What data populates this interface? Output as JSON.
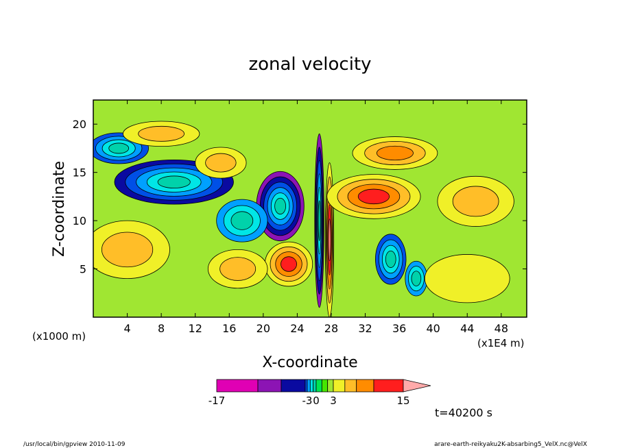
{
  "chart_data": {
    "type": "heatmap",
    "title": "zonal velocity",
    "xlabel": "X-coordinate",
    "ylabel": "Z-coordinate",
    "x_unit_left": "(x1000 m)",
    "x_unit_right": "(x1E4 m)",
    "xticks": [
      "4",
      "8",
      "12",
      "16",
      "20",
      "24",
      "28",
      "32",
      "36",
      "40",
      "44",
      "48"
    ],
    "xtick_values": [
      4,
      8,
      12,
      16,
      20,
      24,
      28,
      32,
      36,
      40,
      44,
      48
    ],
    "yticks": [
      "5",
      "10",
      "15",
      "20"
    ],
    "ytick_values": [
      5,
      10,
      15,
      20
    ],
    "xlim": [
      0,
      51
    ],
    "ylim": [
      0,
      22.5
    ],
    "colorbar": {
      "levels": [
        -17,
        -13,
        -9,
        -5,
        -3,
        -2,
        -1,
        0,
        1,
        2,
        3,
        5,
        7,
        10,
        15
      ],
      "labels": [
        "-17",
        "-3",
        "0",
        "3",
        "15"
      ],
      "label_values": [
        -17,
        -3,
        0,
        3,
        15
      ],
      "colors": [
        "#e000b4",
        "#8c14b4",
        "#0a0aa0",
        "#0050e6",
        "#00a0ff",
        "#00e6e6",
        "#00d2aa",
        "#00e650",
        "#46e600",
        "#a0e632",
        "#f0f028",
        "#ffbe28",
        "#ff8c00",
        "#ff1e1e",
        "#ff8070",
        "#ffaaaa"
      ]
    },
    "features": [
      {
        "cx": 9.5,
        "cy": 14.0,
        "rx": 7.0,
        "ry": 2.3,
        "v": -10
      },
      {
        "cx": 3.0,
        "cy": 17.5,
        "rx": 3.5,
        "ry": 1.6,
        "v": -7
      },
      {
        "cx": 22.0,
        "cy": 11.5,
        "rx": 2.8,
        "ry": 3.6,
        "v": -13
      },
      {
        "cx": 35.0,
        "cy": 6.0,
        "rx": 1.8,
        "ry": 2.6,
        "v": -8
      },
      {
        "cx": 38.0,
        "cy": 4.0,
        "rx": 1.3,
        "ry": 1.8,
        "v": -4
      },
      {
        "cx": 26.6,
        "cy": 10.0,
        "rx": 0.55,
        "ry": 9.0,
        "v": -13
      },
      {
        "cx": 27.8,
        "cy": 8.0,
        "rx": 0.5,
        "ry": 8.0,
        "v": 12
      },
      {
        "cx": 23.0,
        "cy": 5.5,
        "rx": 2.8,
        "ry": 2.3,
        "v": 8
      },
      {
        "cx": 33.0,
        "cy": 12.5,
        "rx": 5.5,
        "ry": 2.3,
        "v": 8
      },
      {
        "cx": 35.5,
        "cy": 17.0,
        "rx": 5.0,
        "ry": 1.7,
        "v": 5
      },
      {
        "cx": 45.0,
        "cy": 12.0,
        "rx": 4.5,
        "ry": 2.6,
        "v": 4
      },
      {
        "cx": 17.5,
        "cy": 10.0,
        "rx": 3.0,
        "ry": 2.2,
        "v": -4
      },
      {
        "cx": 17.0,
        "cy": 5.0,
        "rx": 3.5,
        "ry": 2.0,
        "v": 3
      },
      {
        "cx": 8.0,
        "cy": 19.0,
        "rx": 4.5,
        "ry": 1.3,
        "v": 4
      },
      {
        "cx": 15.0,
        "cy": 16.0,
        "rx": 3.0,
        "ry": 1.6,
        "v": 3
      },
      {
        "cx": 4.0,
        "cy": 7.0,
        "rx": 5.0,
        "ry": 3.0,
        "v": 3
      },
      {
        "cx": 44.0,
        "cy": 4.0,
        "rx": 5.0,
        "ry": 2.5,
        "v": 2
      }
    ],
    "annotation": "t=40200 s"
  },
  "footer": {
    "left": "/usr/local/bin/gpview   2010-11-09",
    "right": "arare-earth-reikyaku2K-absarbing5_VelX.nc@VelX"
  }
}
